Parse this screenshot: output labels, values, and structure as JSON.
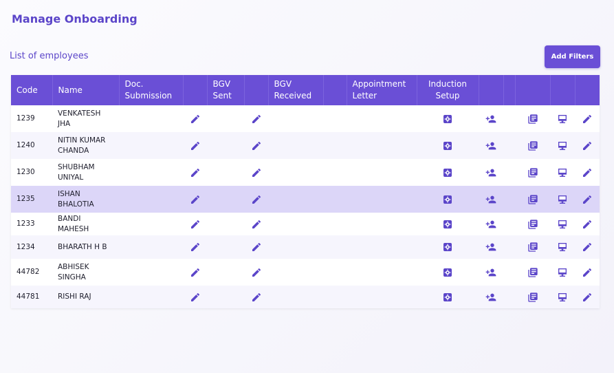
{
  "page_title": "Manage Onboarding",
  "section_title": "List of employees",
  "add_filters_label": "Add Filters",
  "accent_color": "#6a4fd6",
  "columns": [
    "Code",
    "Name",
    "Doc. Submission",
    "",
    "BGV Sent",
    "",
    "BGV Received",
    "",
    "Appointment Letter",
    "Induction Setup",
    "",
    "",
    "",
    "",
    ""
  ],
  "row_icons": [
    "edit-icon",
    "edit-icon",
    "settings-icon",
    "add-person-icon",
    "documents-icon",
    "display-icon",
    "edit-icon"
  ],
  "rows": [
    {
      "code": "1239",
      "name": "VENKATESH JHA"
    },
    {
      "code": "1240",
      "name": "NITIN KUMAR CHANDA"
    },
    {
      "code": "1230",
      "name": "SHUBHAM UNIYAL"
    },
    {
      "code": "1235",
      "name": "ISHAN BHALOTIA"
    },
    {
      "code": "1233",
      "name": "BANDI MAHESH"
    },
    {
      "code": "1234",
      "name": "BHARATH H B"
    },
    {
      "code": "44782",
      "name": "ABHISEK SINGHA"
    },
    {
      "code": "44781",
      "name": "RISHI RAJ"
    }
  ]
}
